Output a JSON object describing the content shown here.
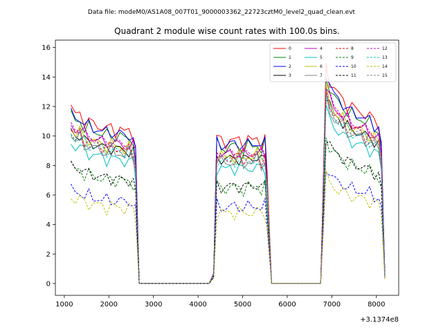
{
  "header": {
    "suptitle": "Data file: modeM0/AS1A08_007T01_9000003362_22723cztM0_level2_quad_clean.evt",
    "title": "Quadrant 2 module wise count rates with 100.0s bins."
  },
  "axes": {
    "offset_label": "+3.1374e8"
  },
  "chart_data": {
    "type": "line",
    "title": "Quadrant 2 module wise count rates with 100.0s bins.",
    "x_offset_label": "+3.1374e8",
    "xlim": [
      800,
      8500
    ],
    "ylim": [
      -0.8,
      16.5
    ],
    "x_ticks": [
      1000,
      2000,
      3000,
      4000,
      5000,
      6000,
      7000,
      8000
    ],
    "y_ticks": [
      0,
      2,
      4,
      6,
      8,
      10,
      12,
      14,
      16
    ],
    "grid": false,
    "legend_placement": "top-right",
    "legend_columns": 4,
    "level_points": [
      [
        1150,
        1
      ],
      [
        1250,
        0.96
      ],
      [
        1350,
        0.97
      ],
      [
        1450,
        0.93
      ],
      [
        1550,
        0.92
      ],
      [
        1650,
        0.91
      ],
      [
        1750,
        0.9
      ],
      [
        1850,
        0.89
      ],
      [
        1950,
        0.88
      ],
      [
        2050,
        0.89
      ],
      [
        2150,
        0.87
      ],
      [
        2250,
        0.88
      ],
      [
        2350,
        0.86
      ],
      [
        2450,
        0.87
      ],
      [
        2550,
        0.85
      ],
      [
        2600,
        0.76
      ],
      [
        2680,
        0
      ],
      [
        4250,
        0
      ],
      [
        4350,
        0.06
      ],
      [
        4420,
        0.82
      ],
      [
        4520,
        0.82
      ],
      [
        4620,
        0.8
      ],
      [
        4720,
        0.82
      ],
      [
        4820,
        0.81
      ],
      [
        4920,
        0.82
      ],
      [
        5020,
        0.8
      ],
      [
        5120,
        0.82
      ],
      [
        5220,
        0.81
      ],
      [
        5320,
        0.83
      ],
      [
        5420,
        0.8
      ],
      [
        5500,
        0.82
      ],
      [
        5550,
        0.62
      ],
      [
        5650,
        0
      ],
      [
        6750,
        0
      ],
      [
        6800,
        0.5
      ],
      [
        6870,
        1.24
      ],
      [
        6950,
        1.16
      ],
      [
        7050,
        1.1
      ],
      [
        7150,
        1.08
      ],
      [
        7250,
        1.05
      ],
      [
        7350,
        1.02
      ],
      [
        7450,
        1.0
      ],
      [
        7550,
        0.99
      ],
      [
        7650,
        0.98
      ],
      [
        7750,
        0.96
      ],
      [
        7850,
        0.95
      ],
      [
        7950,
        0.93
      ],
      [
        8050,
        0.91
      ],
      [
        8110,
        0.8
      ],
      [
        8190,
        0.05
      ]
    ],
    "series": [
      {
        "name": "0",
        "color": "#ff0000",
        "style": "solid",
        "base": 11.9,
        "phase": 0.0
      },
      {
        "name": "1",
        "color": "#008000",
        "style": "solid",
        "base": 11.4,
        "phase": 0.7
      },
      {
        "name": "2",
        "color": "#0000ff",
        "style": "solid",
        "base": 11.6,
        "phase": 1.4
      },
      {
        "name": "3",
        "color": "#000000",
        "style": "solid",
        "base": 10.4,
        "phase": 2.1
      },
      {
        "name": "4",
        "color": "#bf00bf",
        "style": "solid",
        "base": 10.8,
        "phase": 2.8
      },
      {
        "name": "5",
        "color": "#00bfbf",
        "style": "solid",
        "base": 9.6,
        "phase": 3.5
      },
      {
        "name": "6",
        "color": "#bfbf00",
        "style": "solid",
        "base": 10.6,
        "phase": 4.2
      },
      {
        "name": "7",
        "color": "#808080",
        "style": "solid",
        "base": 10.1,
        "phase": 4.9
      },
      {
        "name": "8",
        "color": "#ff0000",
        "style": "dashed",
        "base": 10.5,
        "phase": 5.6
      },
      {
        "name": "9",
        "color": "#008000",
        "style": "dashed",
        "base": 8.0,
        "phase": 0.35
      },
      {
        "name": "10",
        "color": "#0000ff",
        "style": "dashed",
        "base": 6.4,
        "phase": 1.05
      },
      {
        "name": "11",
        "color": "#000000",
        "style": "dashed",
        "base": 8.1,
        "phase": 1.75
      },
      {
        "name": "12",
        "color": "#bf00bf",
        "style": "dashed",
        "base": 10.9,
        "phase": 2.45
      },
      {
        "name": "13",
        "color": "#00bfbf",
        "style": "dashed",
        "base": 10.2,
        "phase": 3.15
      },
      {
        "name": "14",
        "color": "#bfbf00",
        "style": "dashed",
        "base": 5.9,
        "phase": 3.85
      },
      {
        "name": "15",
        "color": "#808080",
        "style": "dashed",
        "base": 10.3,
        "phase": 4.55
      }
    ]
  }
}
